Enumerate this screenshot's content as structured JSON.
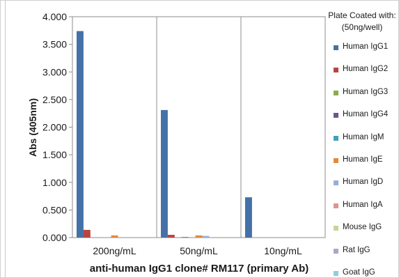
{
  "chart_data": {
    "type": "bar",
    "xlabel": "anti-human IgG1 clone# RM117 (primary Ab)",
    "ylabel": "Abs (405nm)",
    "ylim": [
      0,
      4.0
    ],
    "yticks": [
      "0.000",
      "0.500",
      "1.000",
      "1.500",
      "2.000",
      "2.500",
      "3.000",
      "3.500",
      "4.000"
    ],
    "categories": [
      "200ng/mL",
      "50ng/mL",
      "10ng/mL"
    ],
    "legend_title": [
      "Plate Coated with:",
      "(50ng/well)"
    ],
    "legend_position": "right",
    "grid": "vertical category dividers",
    "series": [
      {
        "name": "Human IgG1",
        "color": "#4472a8",
        "values": [
          3.74,
          2.31,
          0.73
        ]
      },
      {
        "name": "Human IgG2",
        "color": "#b94442",
        "values": [
          0.14,
          0.05,
          0.0
        ]
      },
      {
        "name": "Human IgG3",
        "color": "#8cab4a",
        "values": [
          0.0,
          0.0,
          0.0
        ]
      },
      {
        "name": "Human IgG4",
        "color": "#6d5591",
        "values": [
          0.0,
          0.01,
          0.0
        ]
      },
      {
        "name": "Human IgM",
        "color": "#3fa1bb",
        "values": [
          0.0,
          0.0,
          0.0
        ]
      },
      {
        "name": "Human IgE",
        "color": "#e58a3a",
        "values": [
          0.04,
          0.04,
          0.0
        ]
      },
      {
        "name": "Human IgD",
        "color": "#94b0d6",
        "values": [
          0.0,
          0.03,
          0.0
        ]
      },
      {
        "name": "Human IgA",
        "color": "#d99694",
        "values": [
          0.0,
          0.0,
          0.0
        ]
      },
      {
        "name": "Mouse IgG",
        "color": "#c3d69b",
        "values": [
          0.0,
          0.0,
          0.0
        ]
      },
      {
        "name": "Rat IgG",
        "color": "#b2a2c7",
        "values": [
          0.0,
          0.0,
          0.0
        ]
      },
      {
        "name": "Goat IgG",
        "color": "#92cddc",
        "values": [
          0.0,
          0.0,
          0.0
        ]
      }
    ]
  }
}
